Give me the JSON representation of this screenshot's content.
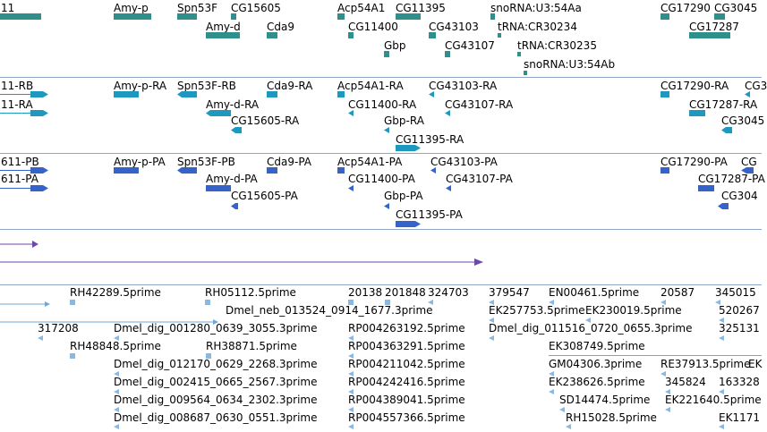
{
  "colors": {
    "gene": "#2f8f8a",
    "transcript": "#1f98c0",
    "protein": "#3563c9",
    "variation": "#6a4aa8",
    "est_line": "#6fa7d8",
    "est_feature": "#8ab8df",
    "separator": "#8fa4c8"
  },
  "tracks": {
    "genes": {
      "labels": [
        "11",
        "Amy-p",
        "Spn53F",
        "CG15605",
        "Acp54A1",
        "CG11395",
        "snoRNA:U3:54Aa",
        "CG17290",
        "CG3045",
        "Amy-d",
        "Cda9",
        "CG11400",
        "CG43103",
        "tRNA:CR30234",
        "CG17287",
        "Gbp",
        "CG43107",
        "tRNA:CR30235",
        "snoRNA:U3:54Ab"
      ],
      "glyph": "gene-block"
    },
    "transcripts": {
      "labels": [
        "11-RB",
        "11-RA",
        "Amy-p-RA",
        "Spn53F-RB",
        "Cda9-RA",
        "Acp54A1-RA",
        "CG43103-RA",
        "CG17290-RA",
        "CG3",
        "Amy-d-RA",
        "CG11400-RA",
        "CG43107-RA",
        "CG17287-RA",
        "CG15605-RA",
        "CG3045",
        "Gbp-RA",
        "CG11395-RA"
      ],
      "glyph": "transcript-arrow"
    },
    "proteins": {
      "labels": [
        "611-PB",
        "611-PA",
        "Amy-p-PA",
        "Spn53F-PB",
        "Cda9-PA",
        "Acp54A1-PA",
        "CG43103-PA",
        "CG17290-PA",
        "CG",
        "Amy-d-PA",
        "CG11400-PA",
        "CG43107-PA",
        "CG17287-PA",
        "CG15605-PA",
        "CG304",
        "Gbp-PA",
        "CG11395-PA"
      ],
      "glyph": "protein-arrow"
    },
    "variations": {
      "glyph": "variation-arrow"
    },
    "ests": {
      "labels": [
        "RH42289.5prime",
        "RH05112.5prime",
        "20138",
        "201848",
        "324703",
        "379547",
        "EN00461.5prime",
        "20587",
        "345015",
        "Dmel_neb_013524_0914_1677.3prime",
        "EK257753.5prime",
        "EK230019.5prime",
        "520267",
        "317208",
        "Dmel_dig_001280_0639_3055.3prime",
        "RP004263192.5prime",
        "Dmel_dig_011516_0720_0655.3prime",
        "325131",
        "RH48848.5prime",
        "RH38871.5prime",
        "RP004363291.5prime",
        "EK308749.5prime",
        "Dmel_dig_012170_0629_2268.3prime",
        "RP004211042.5prime",
        "GM04306.3prime",
        "RE37913.5prime",
        "EK",
        "Dmel_dig_002415_0665_2567.3prime",
        "RP004242416.5prime",
        "EK238626.5prime",
        "345824",
        "163328",
        "Dmel_dig_009564_0634_2302.3prime",
        "RP004389041.5prime",
        "SD14474.5prime",
        "EK221640.5prime",
        "Dmel_dig_008687_0630_0551.3prime",
        "RP004557366.5prime",
        "RH15028.5prime",
        "EK1171"
      ],
      "glyph": "est-arrow"
    }
  }
}
